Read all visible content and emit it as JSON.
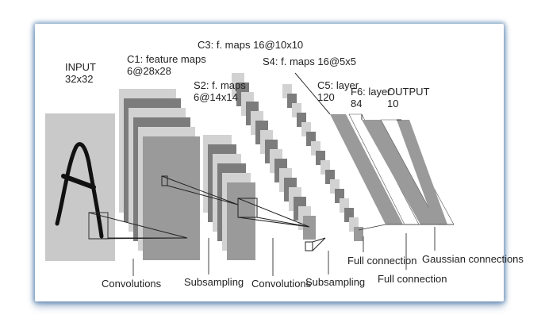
{
  "labels": {
    "input": [
      "INPUT",
      "32x32"
    ],
    "c1": [
      "C1: feature maps",
      "6@28x28"
    ],
    "s2": [
      "S2: f. maps",
      "6@14x14"
    ],
    "c3": [
      "C3: f. maps 16@10x10"
    ],
    "s4": [
      "S4: f. maps 16@5x5"
    ],
    "c5": [
      "C5: layer",
      "120"
    ],
    "f6": [
      "F6: layer",
      "84"
    ],
    "output": [
      "OUTPUT",
      "10"
    ]
  },
  "operations": {
    "conv1": "Convolutions",
    "sub1": "Subsampling",
    "conv2": "Convolutions",
    "sub2": "Subsampling",
    "full1": "Full connection",
    "full2": "Full connection",
    "gauss": "Gaussian connections"
  },
  "colors": {
    "input_plane": "#c9c9c9",
    "map_light": "#d2d2d2",
    "map_dark": "#7c7c7c",
    "map_mid": "#9a9a9a",
    "glyph": "#111111",
    "shadow": "#2a6fb0"
  }
}
